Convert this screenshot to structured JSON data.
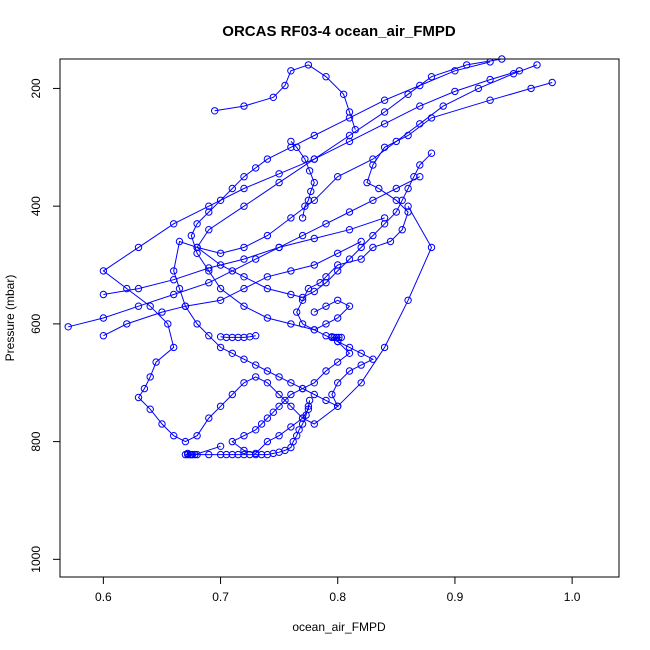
{
  "chart_data": {
    "type": "scatter",
    "title": "ORCAS RF03-4 ocean_air_FMPD",
    "xlabel": "ocean_air_FMPD",
    "ylabel": "Pressure (mbar)",
    "xlim": [
      0.563,
      1.04
    ],
    "ylim": [
      1030,
      150
    ],
    "y_reversed": true,
    "x_ticks": [
      0.6,
      0.7,
      0.8,
      0.9,
      1.0
    ],
    "x_tick_labels": [
      "0.6",
      "0.7",
      "0.8",
      "0.9",
      "1.0"
    ],
    "y_ticks": [
      200,
      400,
      600,
      800,
      1000
    ],
    "y_tick_labels": [
      "200",
      "400",
      "600",
      "800",
      "1000"
    ],
    "colors": {
      "series": "#0000ff",
      "axes": "#000000",
      "background": "#ffffff"
    },
    "series": [
      {
        "style": "points-and-lines",
        "x": [
          0.983,
          0.965,
          0.93,
          0.88,
          0.86,
          0.84,
          0.83,
          0.825,
          0.835,
          0.85,
          0.86,
          0.855,
          0.845,
          0.83,
          0.82,
          0.8,
          0.79,
          0.785,
          0.775,
          0.77,
          0.765,
          0.77,
          0.78,
          0.79,
          0.8,
          0.81,
          0.8,
          0.79,
          0.78,
          0.77,
          0.76,
          0.755,
          0.75,
          0.745,
          0.74,
          0.735,
          0.73,
          0.72,
          0.71,
          0.72,
          0.73,
          0.74,
          0.75,
          0.76,
          0.77,
          0.775,
          0.776,
          0.775,
          0.773,
          0.77,
          0.767,
          0.765,
          0.762,
          0.76,
          0.755,
          0.75,
          0.745,
          0.74,
          0.735,
          0.73,
          0.725,
          0.72,
          0.715,
          0.71,
          0.705,
          0.7,
          0.69,
          0.68,
          0.675,
          0.672,
          0.67
        ],
        "y": [
          190,
          200,
          220,
          250,
          280,
          300,
          330,
          360,
          370,
          390,
          410,
          440,
          460,
          470,
          490,
          500,
          520,
          530,
          540,
          560,
          580,
          600,
          610,
          620,
          630,
          650,
          665,
          680,
          700,
          710,
          720,
          730,
          740,
          750,
          760,
          770,
          780,
          790,
          800,
          815,
          820,
          800,
          790,
          775,
          760,
          745,
          730,
          740,
          755,
          770,
          780,
          790,
          800,
          810,
          815,
          818,
          820,
          822,
          822,
          822,
          822,
          822,
          822,
          822,
          822,
          822,
          822,
          822,
          822,
          822,
          822
        ]
      },
      {
        "style": "points-and-lines",
        "x": [
          0.97,
          0.95,
          0.92,
          0.89,
          0.87,
          0.85,
          0.83,
          0.8,
          0.78,
          0.76,
          0.74,
          0.72,
          0.7,
          0.68,
          0.665,
          0.66,
          0.665,
          0.67,
          0.68,
          0.69,
          0.7,
          0.71,
          0.72,
          0.73,
          0.74,
          0.75,
          0.76,
          0.77,
          0.78,
          0.79,
          0.8,
          0.795,
          0.8,
          0.81,
          0.82,
          0.83,
          0.82,
          0.81,
          0.8,
          0.795
        ],
        "y": [
          160,
          175,
          200,
          230,
          260,
          290,
          320,
          350,
          390,
          420,
          450,
          470,
          480,
          470,
          460,
          510,
          540,
          570,
          600,
          620,
          640,
          650,
          660,
          670,
          680,
          690,
          700,
          710,
          720,
          730,
          740,
          720,
          700,
          680,
          670,
          660,
          650,
          640,
          630,
          622
        ]
      },
      {
        "style": "points-and-lines",
        "x": [
          0.955,
          0.93,
          0.9,
          0.87,
          0.84,
          0.81,
          0.78,
          0.75,
          0.72,
          0.69,
          0.66,
          0.63,
          0.6,
          0.62,
          0.64,
          0.655,
          0.66,
          0.645,
          0.64,
          0.635,
          0.63,
          0.64,
          0.65,
          0.66,
          0.67,
          0.68,
          0.69,
          0.7,
          0.71,
          0.72,
          0.73,
          0.74,
          0.75,
          0.76,
          0.77,
          0.78,
          0.8,
          0.82,
          0.84,
          0.86,
          0.88,
          0.86
        ],
        "y": [
          170,
          185,
          205,
          230,
          260,
          290,
          320,
          345,
          370,
          400,
          430,
          470,
          510,
          540,
          570,
          600,
          640,
          665,
          690,
          710,
          725,
          745,
          770,
          790,
          800,
          790,
          760,
          740,
          720,
          700,
          690,
          700,
          720,
          740,
          760,
          770,
          740,
          700,
          640,
          560,
          470,
          400
        ]
      },
      {
        "style": "points-and-lines",
        "x": [
          0.94,
          0.91,
          0.88,
          0.86,
          0.84,
          0.81,
          0.78,
          0.75,
          0.72,
          0.69,
          0.68,
          0.7,
          0.72,
          0.74,
          0.76,
          0.77,
          0.78,
          0.79,
          0.8,
          0.81,
          0.82,
          0.83,
          0.84,
          0.85,
          0.855,
          0.86,
          0.865,
          0.87,
          0.88
        ],
        "y": [
          150,
          160,
          180,
          210,
          240,
          280,
          320,
          360,
          400,
          440,
          470,
          500,
          520,
          540,
          550,
          555,
          545,
          530,
          510,
          490,
          470,
          450,
          430,
          410,
          390,
          370,
          350,
          330,
          310
        ]
      },
      {
        "style": "points-and-lines",
        "x": [
          0.93,
          0.9,
          0.87,
          0.84,
          0.81,
          0.78,
          0.76,
          0.74,
          0.73,
          0.72,
          0.71,
          0.7,
          0.69,
          0.68,
          0.675,
          0.68,
          0.69,
          0.7,
          0.72,
          0.74,
          0.76,
          0.78,
          0.79,
          0.8,
          0.81,
          0.8,
          0.79,
          0.78
        ],
        "y": [
          155,
          170,
          195,
          220,
          250,
          280,
          300,
          320,
          335,
          350,
          370,
          390,
          410,
          430,
          450,
          480,
          510,
          540,
          570,
          590,
          600,
          610,
          600,
          590,
          570,
          560,
          570,
          580
        ]
      },
      {
        "style": "points-and-lines",
        "x": [
          0.57,
          0.6,
          0.63,
          0.66,
          0.69,
          0.71,
          0.73,
          0.75,
          0.77,
          0.79,
          0.81,
          0.83,
          0.85,
          0.87
        ],
        "y": [
          605,
          590,
          570,
          550,
          530,
          510,
          490,
          470,
          450,
          430,
          410,
          390,
          370,
          350
        ]
      },
      {
        "style": "points-and-lines",
        "x": [
          0.6,
          0.63,
          0.66,
          0.69,
          0.72,
          0.75,
          0.78,
          0.81,
          0.84
        ],
        "y": [
          550,
          540,
          525,
          505,
          490,
          470,
          455,
          440,
          420
        ]
      },
      {
        "style": "points-and-lines",
        "x": [
          0.6,
          0.62,
          0.65,
          0.67,
          0.7,
          0.72,
          0.74,
          0.76,
          0.78,
          0.8,
          0.82
        ],
        "y": [
          620,
          600,
          580,
          570,
          560,
          540,
          520,
          510,
          500,
          480,
          460
        ]
      },
      {
        "style": "points-and-lines",
        "x": [
          0.7,
          0.705,
          0.71,
          0.715,
          0.72,
          0.725,
          0.73
        ],
        "y": [
          622,
          623,
          623,
          623,
          623,
          622,
          620
        ]
      },
      {
        "style": "points-and-lines",
        "x": [
          0.795,
          0.797,
          0.799,
          0.801,
          0.803
        ],
        "y": [
          623,
          623,
          623,
          623,
          623
        ]
      },
      {
        "style": "points-and-lines",
        "x": [
          0.695,
          0.72,
          0.745,
          0.755,
          0.76,
          0.775,
          0.79,
          0.805,
          0.81,
          0.815
        ],
        "y": [
          238,
          230,
          215,
          195,
          170,
          160,
          180,
          210,
          240,
          270
        ]
      },
      {
        "style": "points-and-lines",
        "x": [
          0.76,
          0.765,
          0.772,
          0.776,
          0.78,
          0.777,
          0.775,
          0.772,
          0.77
        ],
        "y": [
          290,
          300,
          320,
          340,
          360,
          375,
          390,
          400,
          420
        ]
      },
      {
        "style": "points-and-lines",
        "x": [
          0.672,
          0.674,
          0.676,
          0.678,
          0.7
        ],
        "y": [
          820,
          822,
          822,
          822,
          808
        ]
      }
    ]
  }
}
